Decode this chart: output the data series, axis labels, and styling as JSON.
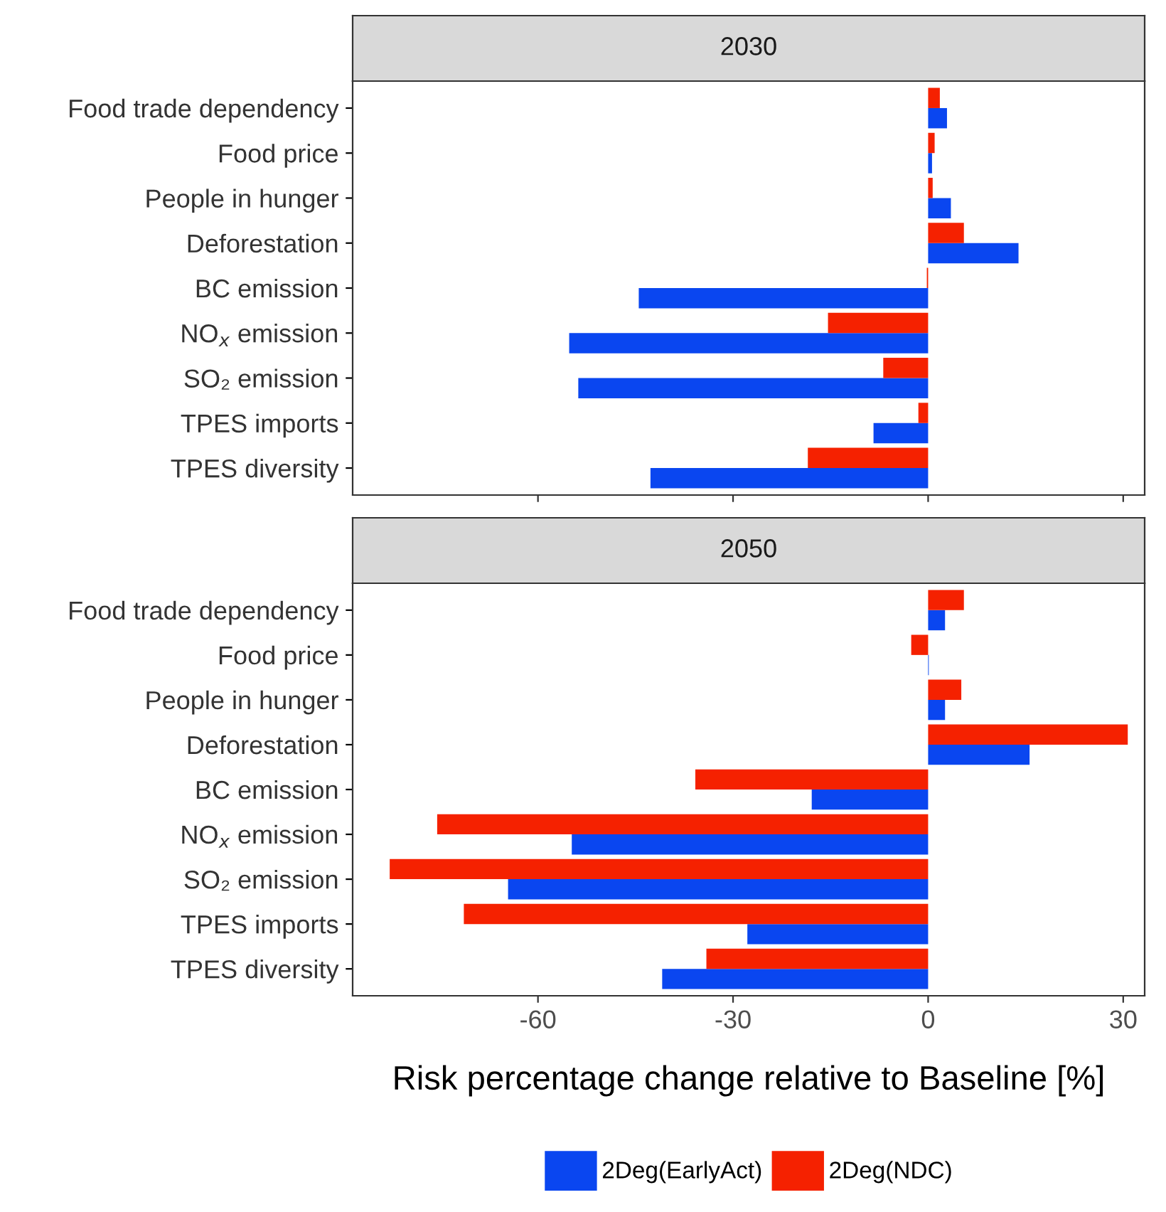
{
  "chart_data": [
    {
      "type": "bar",
      "orientation": "horizontal",
      "title": "2030",
      "categories": [
        "Food trade dependency",
        "Food price",
        "People in hunger",
        "Deforestation",
        "BC emission",
        "NO$_{x}$ emission",
        "SO₂ emission",
        "TPES imports",
        "TPES diversity"
      ],
      "series": [
        {
          "color": "#0a46f0",
          "values": [
            2.9,
            0.6,
            3.5,
            13.9,
            -44.5,
            -55.2,
            -53.8,
            -8.4,
            -42.7
          ]
        },
        {
          "color": "#f52100",
          "values": [
            1.8,
            1.0,
            0.7,
            5.5,
            -0.2,
            -15.4,
            -6.9,
            -1.5,
            -18.5
          ]
        }
      ],
      "xlim": [
        -88.5,
        33.3
      ],
      "xticks": [
        -60,
        -30,
        0,
        30
      ],
      "tick_labels": "y"
    },
    {
      "type": "bar",
      "orientation": "horizontal",
      "title": "2050",
      "categories": [
        "Food trade dependency",
        "Food price",
        "People in hunger",
        "Deforestation",
        "BC emission",
        "NO$_{x}$ emission",
        "SO₂ emission",
        "TPES imports",
        "TPES diversity"
      ],
      "series": [
        {
          "name": "2Deg(EarlyAct)",
          "color": "#0a46f0",
          "values": [
            2.6,
            0.1,
            2.6,
            15.6,
            -17.9,
            -54.8,
            -64.6,
            -27.8,
            -40.9
          ]
        },
        {
          "name": "2Deg(NDC)",
          "color": "#f52100",
          "values": [
            5.5,
            -2.6,
            5.1,
            30.7,
            -35.8,
            -75.5,
            -82.8,
            -71.4,
            -34.1
          ]
        }
      ],
      "xlim": [
        -88.5,
        33.3
      ],
      "xticks": [
        -60,
        -30,
        0,
        30
      ],
      "xlabel": "Risk percentage change relative to Baseline [%]",
      "legend": "bottom"
    }
  ]
}
